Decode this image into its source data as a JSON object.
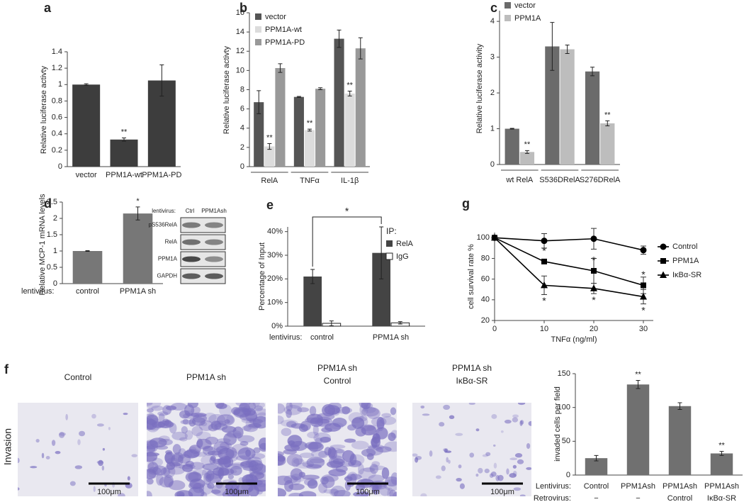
{
  "chart_data": [
    {
      "type": "bar",
      "panel": "a",
      "y_label": "Relative luciferase activty",
      "categories": [
        "vector",
        "PPM1A-wt",
        "PPM1A-PD"
      ],
      "series": [
        {
          "color": "#3d3d3d",
          "values": [
            1.0,
            0.33,
            1.05
          ],
          "errors": [
            0.01,
            0.02,
            0.19
          ],
          "annotations": [
            null,
            "**",
            null
          ]
        }
      ],
      "ylim": [
        0,
        1.4
      ],
      "yticks": [
        0,
        0.2,
        0.4,
        0.6,
        0.8,
        1,
        1.2,
        1.4
      ]
    },
    {
      "type": "bar",
      "panel": "b",
      "y_label": "Relative luciferase activty",
      "categories": [
        "RelA",
        "TNFα",
        "IL-1β"
      ],
      "series": [
        {
          "name": "vector",
          "color": "#555555",
          "values": [
            6.7,
            7.25,
            13.3
          ],
          "errors": [
            1.2,
            0.05,
            0.9
          ]
        },
        {
          "name": "PPM1A-wt",
          "color": "#dcdcdc",
          "values": [
            2.1,
            3.8,
            7.6
          ],
          "errors": [
            0.3,
            0.1,
            0.25
          ],
          "annotations": [
            "**",
            "**",
            "**"
          ]
        },
        {
          "name": "PPM1A-PD",
          "color": "#999999",
          "values": [
            10.25,
            8.1,
            12.3
          ],
          "errors": [
            0.45,
            0.1,
            1.1
          ]
        }
      ],
      "ylim": [
        0,
        16
      ],
      "yticks": [
        0,
        2,
        4,
        6,
        8,
        10,
        12,
        14,
        16
      ]
    },
    {
      "type": "bar",
      "panel": "c",
      "y_label": "Relative luciferase activity",
      "categories": [
        "wt RelA",
        "S536DRelA",
        "S276DRelA"
      ],
      "series": [
        {
          "name": "vector",
          "color": "#6b6b6b",
          "values": [
            1.0,
            3.3,
            2.6
          ],
          "errors": [
            0.01,
            0.67,
            0.12
          ]
        },
        {
          "name": "PPM1A",
          "color": "#bdbdbd",
          "values": [
            0.35,
            3.22,
            1.15
          ],
          "errors": [
            0.04,
            0.12,
            0.07
          ],
          "annotations": [
            "**",
            null,
            "**"
          ]
        }
      ],
      "ylim": [
        0,
        4.3
      ],
      "yticks": [
        0,
        1,
        2,
        3,
        4
      ]
    },
    {
      "type": "bar",
      "panel": "d",
      "y_label": "Relative MCP-1 mRNA levels",
      "x_prefix": "lentivirus:",
      "categories": [
        "control",
        "PPM1A sh"
      ],
      "series": [
        {
          "color": "#777777",
          "values": [
            1.0,
            2.15
          ],
          "errors": [
            0.01,
            0.2
          ],
          "annotations": [
            null,
            "*"
          ]
        }
      ],
      "ylim": [
        0,
        2.5
      ],
      "yticks": [
        0,
        0.5,
        1,
        1.5,
        2,
        2.5
      ]
    },
    {
      "type": "bar",
      "panel": "e",
      "y_label": "Percentage of Input",
      "x_prefix": "lentivirus:",
      "legend_title": "IP:",
      "bracket_label": "*",
      "categories": [
        "control",
        "PPM1A sh"
      ],
      "series": [
        {
          "name": "RelA",
          "color": "#444444",
          "values": [
            21,
            31
          ],
          "errors": [
            3,
            11
          ]
        },
        {
          "name": "IgG",
          "color": "#ffffff",
          "values": [
            1.2,
            1.4
          ],
          "errors": [
            1,
            0.5
          ]
        }
      ],
      "ylim": [
        0,
        42
      ],
      "yticks": [
        {
          "value": 0,
          "label": "0%"
        },
        {
          "value": 10,
          "label": "10%"
        },
        {
          "value": 20,
          "label": "20%"
        },
        {
          "value": 30,
          "label": "30%"
        },
        {
          "value": 40,
          "label": "40%"
        }
      ]
    },
    {
      "type": "line",
      "panel": "g",
      "y_label": "cell survival rate %",
      "x_label": "TNFα (ng/ml)",
      "x": [
        0,
        10,
        20,
        30
      ],
      "series": [
        {
          "name": "Control",
          "color": "#000000",
          "marker": "circle",
          "values": [
            100,
            97,
            99,
            88
          ],
          "errors": [
            0,
            7,
            10,
            4
          ]
        },
        {
          "name": "PPM1A",
          "color": "#000000",
          "marker": "square",
          "values": [
            100,
            77,
            68,
            54
          ],
          "errors": [
            0,
            2,
            12,
            8
          ],
          "annotations": [
            null,
            "*",
            "*",
            "*"
          ]
        },
        {
          "name": "IκBα-SR",
          "color": "#000000",
          "marker": "triangle",
          "values": [
            100,
            54,
            51,
            43
          ],
          "errors": [
            0,
            9,
            5,
            7
          ],
          "annotations": [
            null,
            "*",
            "*",
            "*"
          ]
        }
      ],
      "xlim": [
        0,
        32
      ],
      "xticks": [
        0,
        10,
        20,
        30
      ],
      "ylim": [
        20,
        105
      ],
      "yticks": [
        20,
        40,
        60,
        80,
        100
      ]
    },
    {
      "type": "bar",
      "y_label": "invaded cells per field",
      "x_row_labels": [
        "Lentivirus:",
        "Retrovirus:"
      ],
      "categories": [
        "Control",
        "PPM1Ash",
        "PPM1Ash",
        "PPM1Ash"
      ],
      "categories_row2": [
        "−",
        "−",
        "Control",
        "IκBα-SR"
      ],
      "series": [
        {
          "color": "#707070",
          "values": [
            25,
            134,
            102,
            32
          ],
          "errors": [
            4,
            6,
            5,
            3
          ],
          "annotations": [
            null,
            "**",
            null,
            "**"
          ]
        }
      ],
      "ylim": [
        0,
        150
      ],
      "yticks": [
        0,
        50,
        100,
        150
      ]
    }
  ],
  "blot": {
    "header": "lentivirus:",
    "lanes": [
      "Ctrl",
      "PPM1Ash"
    ],
    "rows": [
      "pS536RelA",
      "RelA",
      "PPM1A",
      "GAPDH"
    ]
  },
  "micrographs": {
    "panel": "f",
    "row_label": "Invasion",
    "scale_bar": "100μm",
    "images": [
      {
        "title": [
          "Control"
        ]
      },
      {
        "title": [
          "PPM1A sh"
        ]
      },
      {
        "title": [
          "PPM1A sh",
          "Control"
        ]
      },
      {
        "title": [
          "PPM1A sh",
          "IκBα-SR"
        ]
      }
    ]
  }
}
